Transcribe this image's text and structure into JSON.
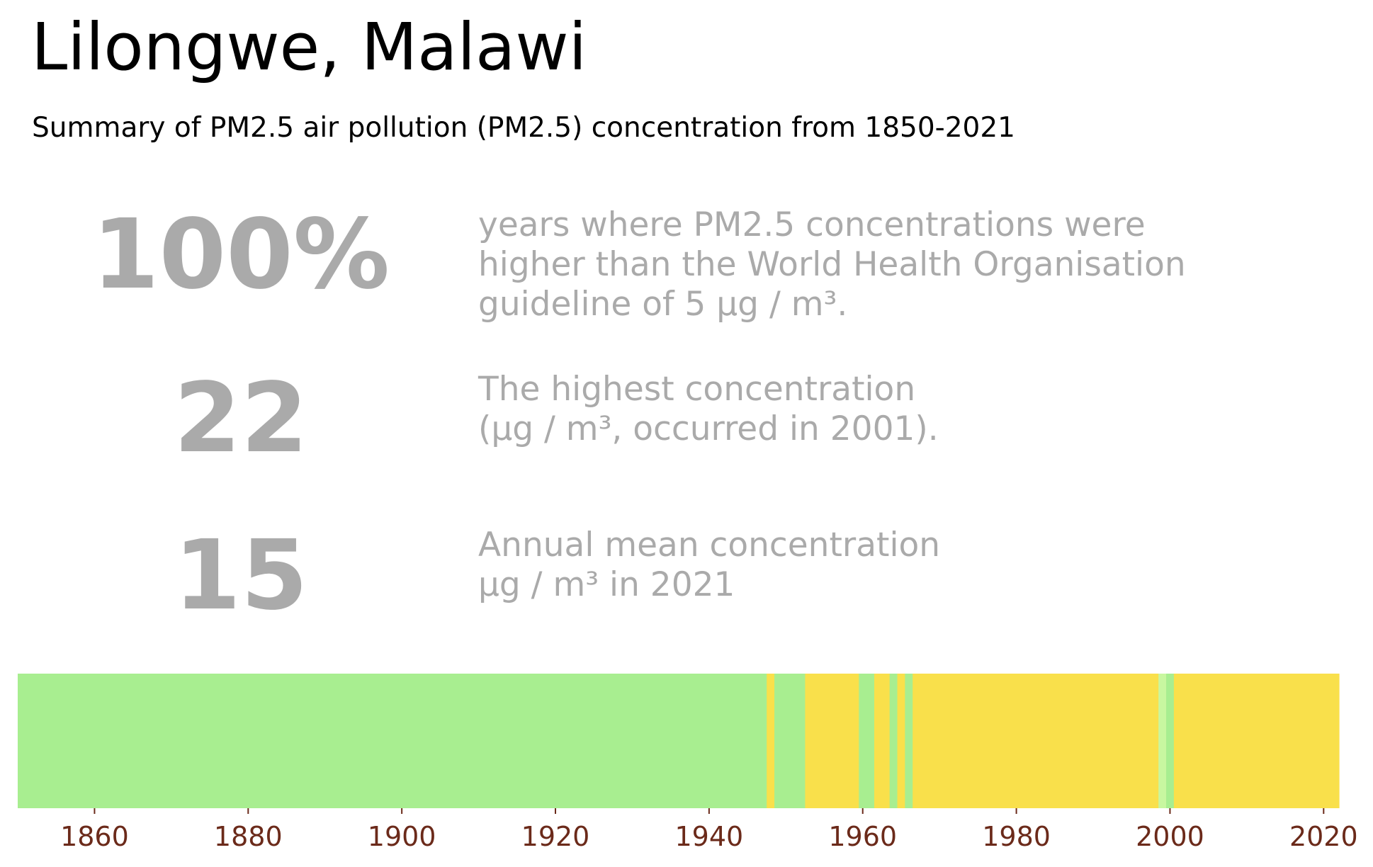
{
  "title": "Lilongwe, Malawi",
  "subtitle": "Summary of PM2.5 air pollution (PM2.5) concentration from 1850-2021",
  "stats": [
    {
      "value": "100%",
      "description": "years where PM2.5 concentrations were\nhigher than the World Health Organisation\nguideline of 5 µg / m³."
    },
    {
      "value": "22",
      "description": "The highest concentration\n(µg / m³, occurred in 2001)."
    },
    {
      "value": "15",
      "description": "Annual mean concentration\nµg / m³ in 2021"
    }
  ],
  "colors": {
    "light_green": "#a8ee90",
    "pale_green": "#c8f7a0",
    "yellow": "#f9e04b",
    "tick_label": "#6b2a1a",
    "text_grey": "#aaaaaa"
  },
  "chart_data": {
    "type": "heatmap",
    "xlim": [
      1850,
      2022
    ],
    "x_ticks": [
      1860,
      1880,
      1900,
      1920,
      1940,
      1960,
      1980,
      2000,
      2020
    ],
    "bands": [
      {
        "start": 1850,
        "end": 1947.5,
        "color": "light_green"
      },
      {
        "start": 1947.5,
        "end": 1948.5,
        "color": "yellow"
      },
      {
        "start": 1948.5,
        "end": 1952.5,
        "color": "light_green"
      },
      {
        "start": 1952.5,
        "end": 1959.5,
        "color": "yellow"
      },
      {
        "start": 1959.5,
        "end": 1961.5,
        "color": "light_green"
      },
      {
        "start": 1961.5,
        "end": 1963.5,
        "color": "yellow"
      },
      {
        "start": 1963.5,
        "end": 1964.5,
        "color": "light_green"
      },
      {
        "start": 1964.5,
        "end": 1965.5,
        "color": "yellow"
      },
      {
        "start": 1965.5,
        "end": 1966.5,
        "color": "light_green"
      },
      {
        "start": 1966.5,
        "end": 1998.5,
        "color": "yellow"
      },
      {
        "start": 1998.5,
        "end": 1999.5,
        "color": "pale_green"
      },
      {
        "start": 1999.5,
        "end": 2000.5,
        "color": "light_green"
      },
      {
        "start": 2000.5,
        "end": 2022,
        "color": "yellow"
      }
    ]
  }
}
